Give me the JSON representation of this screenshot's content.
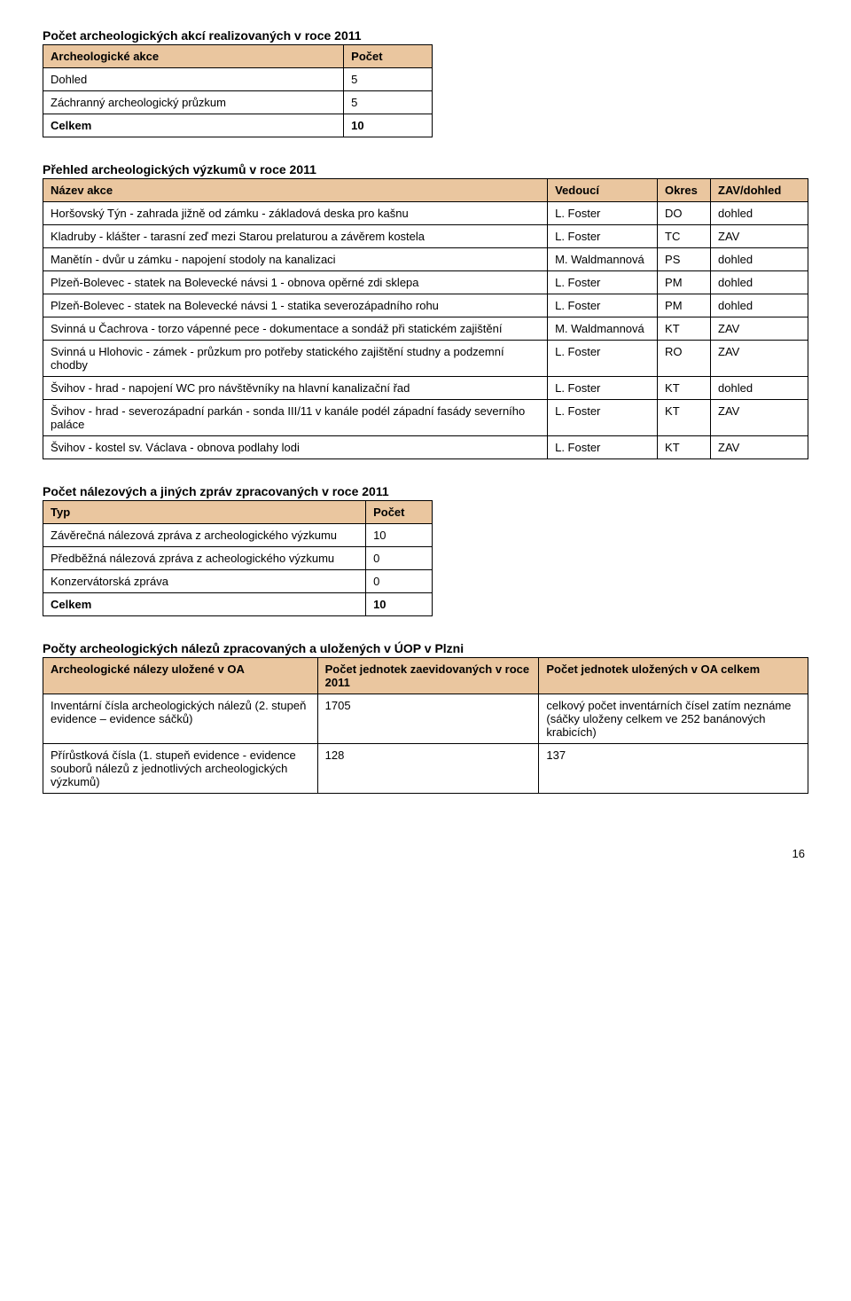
{
  "section1": {
    "title": "Počet archeologických akcí realizovaných v roce 2011",
    "headers": {
      "name": "Archeologické akce",
      "count": "Počet"
    },
    "rows": [
      {
        "label": "Dohled",
        "value": "5"
      },
      {
        "label": "Záchranný archeologický průzkum",
        "value": "5"
      }
    ],
    "total": {
      "label": "Celkem",
      "value": "10"
    }
  },
  "section2": {
    "title": "Přehled archeologických výzkumů v roce 2011",
    "headers": {
      "name": "Název akce",
      "lead": "Vedoucí",
      "district": "Okres",
      "type": "ZAV/dohled"
    },
    "rows": [
      {
        "name": "Horšovský Týn - zahrada jižně od zámku - základová deska pro kašnu",
        "lead": "L. Foster",
        "district": "DO",
        "type": "dohled"
      },
      {
        "name": "Kladruby - klášter - tarasní zeď mezi Starou prelaturou a závěrem kostela",
        "lead": "L. Foster",
        "district": "TC",
        "type": "ZAV"
      },
      {
        "name": "Manětín - dvůr u zámku - napojení stodoly na kanalizaci",
        "lead": "M. Waldmannová",
        "district": "PS",
        "type": "dohled"
      },
      {
        "name": "Plzeň-Bolevec - statek na Bolevecké návsi 1 - obnova opěrné zdi sklepa",
        "lead": "L. Foster",
        "district": "PM",
        "type": "dohled"
      },
      {
        "name": "Plzeň-Bolevec - statek na Bolevecké návsi 1 - statika severozápadního rohu",
        "lead": "L. Foster",
        "district": "PM",
        "type": "dohled"
      },
      {
        "name": "Svinná u Čachrova - torzo vápenné pece - dokumentace a sondáž při statickém zajištění",
        "lead": "M. Waldmannová",
        "district": "KT",
        "type": "ZAV"
      },
      {
        "name": "Svinná u Hlohovic - zámek - průzkum pro potřeby statického zajištění studny a podzemní chodby",
        "lead": "L. Foster",
        "district": "RO",
        "type": "ZAV"
      },
      {
        "name": "Švihov - hrad - napojení WC pro návštěvníky na hlavní kanalizační řad",
        "lead": "L. Foster",
        "district": "KT",
        "type": "dohled"
      },
      {
        "name": "Švihov - hrad - severozápadní parkán - sonda III/11 v kanále podél západní fasády severního paláce",
        "lead": "L. Foster",
        "district": "KT",
        "type": "ZAV"
      },
      {
        "name": "Švihov - kostel sv. Václava - obnova podlahy lodi",
        "lead": "L. Foster",
        "district": "KT",
        "type": "ZAV"
      }
    ]
  },
  "section3": {
    "title": "Počet nálezových a jiných zpráv zpracovaných v roce 2011",
    "headers": {
      "type": "Typ",
      "count": "Počet"
    },
    "rows": [
      {
        "label": "Závěrečná nálezová zpráva z archeologického výzkumu",
        "value": "10"
      },
      {
        "label": "Předběžná nálezová zpráva z acheologického výzkumu",
        "value": "0"
      },
      {
        "label": "Konzervátorská zpráva",
        "value": "0"
      }
    ],
    "total": {
      "label": "Celkem",
      "value": "10"
    }
  },
  "section4": {
    "title": "Počty archeologických nálezů zpracovaných a uložených v ÚOP v Plzni",
    "headers": {
      "col1": "Archeologické nálezy uložené v OA",
      "col2": "Počet jednotek zaevidovaných v roce 2011",
      "col3": "Počet jednotek uložených v OA celkem"
    },
    "rows": [
      {
        "c1": "Inventární čísla archeologických nálezů (2. stupeň evidence – evidence sáčků)",
        "c2": "1705",
        "c3": "celkový počet inventárních čísel zatím neznáme (sáčky uloženy celkem ve 252 banánových krabicích)"
      },
      {
        "c1": "Přírůstková čísla (1. stupeň evidence - evidence souborů nálezů z jednotlivých archeologických výzkumů)",
        "c2": "128",
        "c3": "137"
      }
    ]
  },
  "page_number": "16"
}
